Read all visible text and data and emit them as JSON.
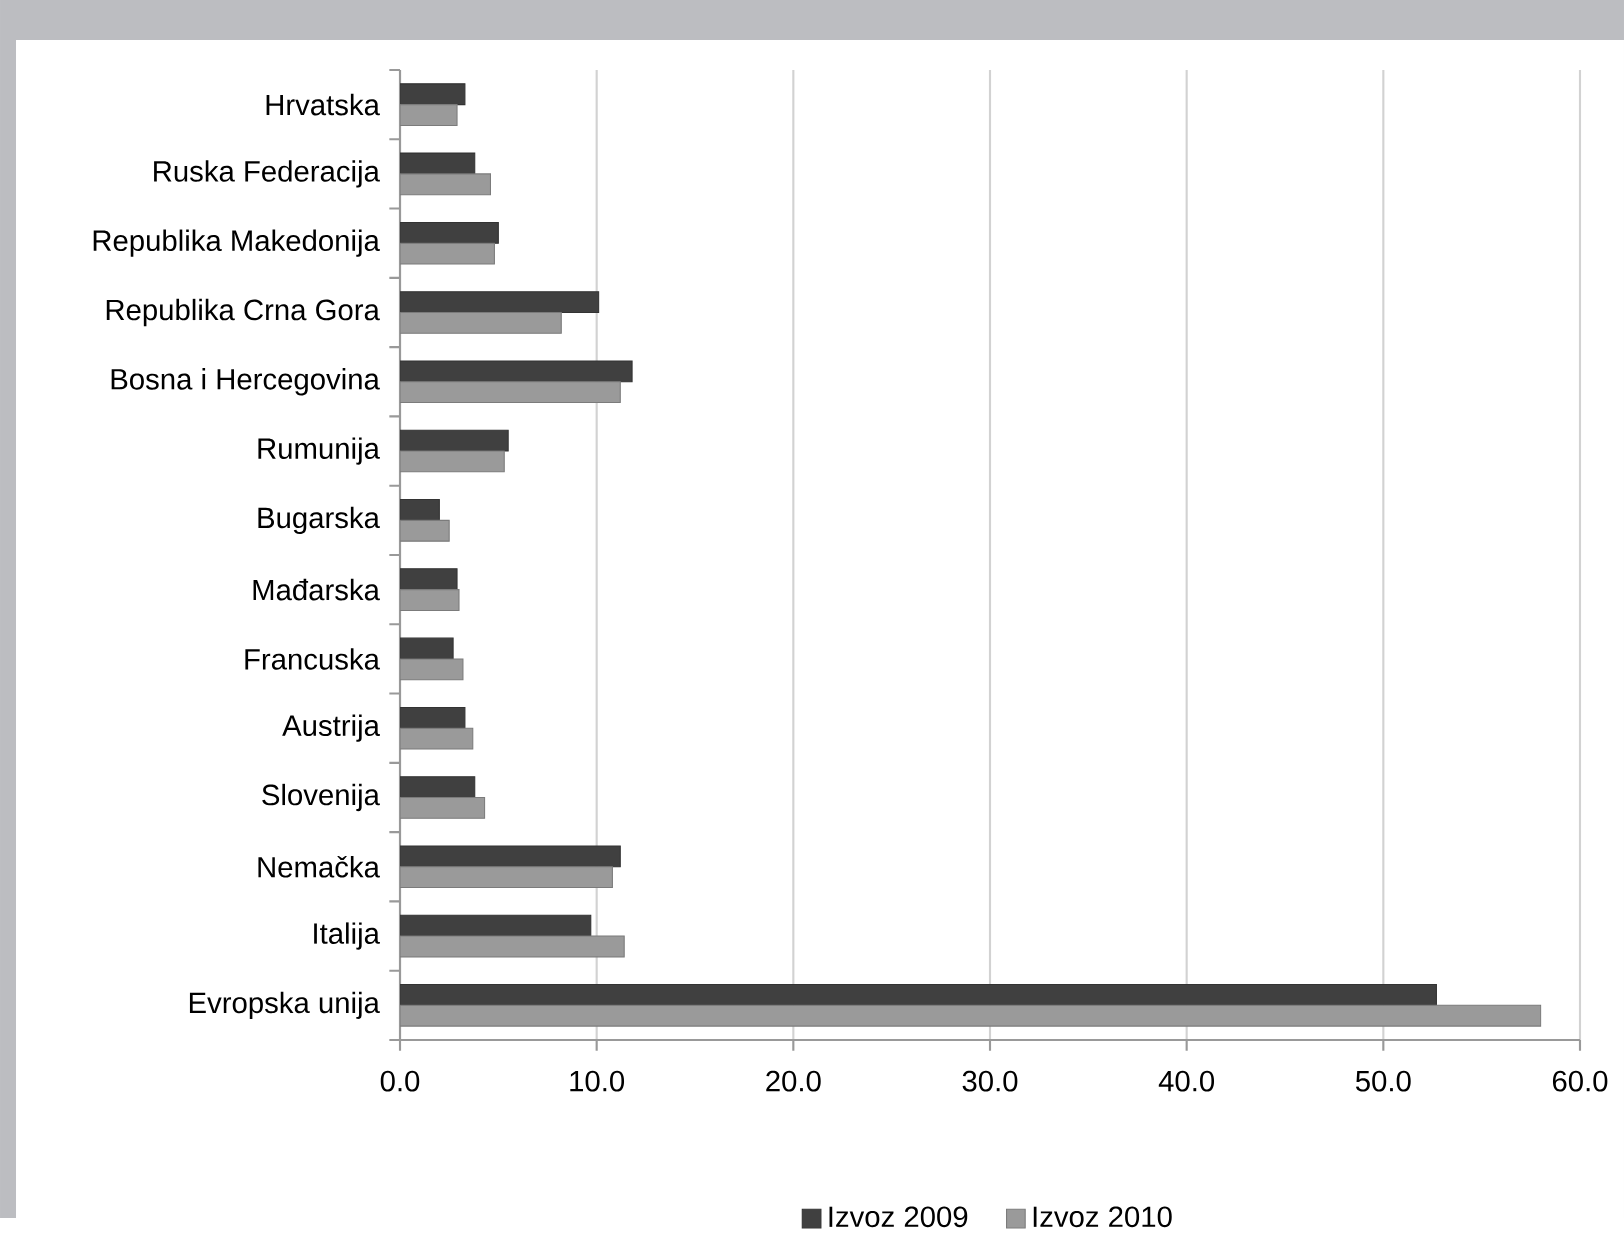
{
  "chart_data": {
    "type": "bar",
    "orientation": "horizontal",
    "categories": [
      "Hrvatska",
      "Ruska Federacija",
      "Republika Makedonija",
      "Republika Crna Gora",
      "Bosna i Hercegovina",
      "Rumunija",
      "Bugarska",
      "Mađarska",
      "Francuska",
      "Austrija",
      "Slovenija",
      "Nemačka",
      "Italija",
      "Evropska unija"
    ],
    "series": [
      {
        "name": "Izvoz 2009",
        "color": "#404040",
        "values": [
          3.3,
          3.8,
          5.0,
          10.1,
          11.8,
          5.5,
          2.0,
          2.9,
          2.7,
          3.3,
          3.8,
          11.2,
          9.7,
          52.7
        ]
      },
      {
        "name": "Izvoz 2010",
        "color": "#9a9a9a",
        "values": [
          2.9,
          4.6,
          4.8,
          8.2,
          11.2,
          5.3,
          2.5,
          3.0,
          3.2,
          3.7,
          4.3,
          10.8,
          11.4,
          58.0
        ]
      }
    ],
    "xlim": [
      0,
      60
    ],
    "xticks": [
      {
        "value": 0,
        "label": "0.0"
      },
      {
        "value": 10,
        "label": "10.0"
      },
      {
        "value": 20,
        "label": "20.0"
      },
      {
        "value": 30,
        "label": "30.0"
      },
      {
        "value": 40,
        "label": "40.0"
      },
      {
        "value": 50,
        "label": "50.0"
      },
      {
        "value": 60,
        "label": "60.0"
      }
    ],
    "grid": "x",
    "legend": "bottom"
  }
}
